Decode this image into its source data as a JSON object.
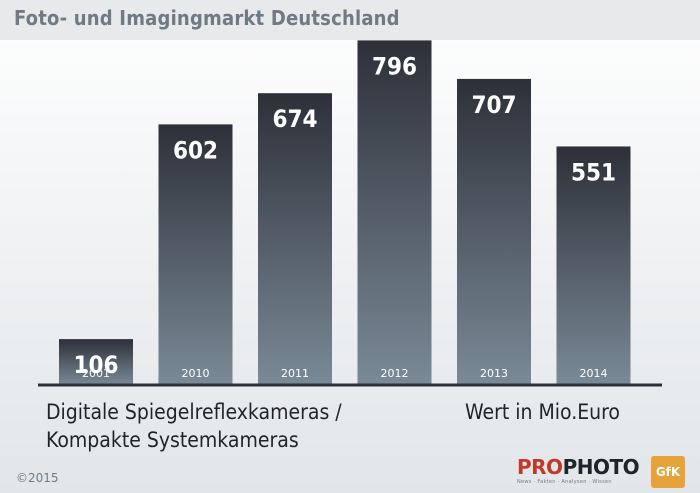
{
  "page": {
    "title": "Foto- und Imagingmarkt Deutschland",
    "caption_left_line1": "Digitale Spiegelreflexkameras /",
    "caption_left_line2": "Kompakte Systemkameras",
    "caption_right": "Wert in Mio.Euro",
    "copyright": "©2015",
    "logo_pro": "PRO",
    "logo_photo": "PHOTO",
    "logo_tagline": "News · Fakten · Analysen · Wissen",
    "logo_gfk": "GfK"
  },
  "colors": {
    "bar_top": "#2d3039",
    "bar_bottom": "#7a8a97",
    "value_label": "#ffffff",
    "baseline": "#2d3039",
    "title": "#6f7a85"
  },
  "chart_data": {
    "type": "bar",
    "categories": [
      "2001",
      "2010",
      "2011",
      "2012",
      "2013",
      "2014"
    ],
    "values": [
      106,
      602,
      674,
      796,
      707,
      551
    ],
    "title": "Foto- und Imagingmarkt Deutschland",
    "xlabel": "",
    "ylabel": "Wert in Mio.Euro",
    "ylim": [
      0,
      820
    ],
    "grid": false,
    "legend": "none",
    "data_labels": true
  }
}
